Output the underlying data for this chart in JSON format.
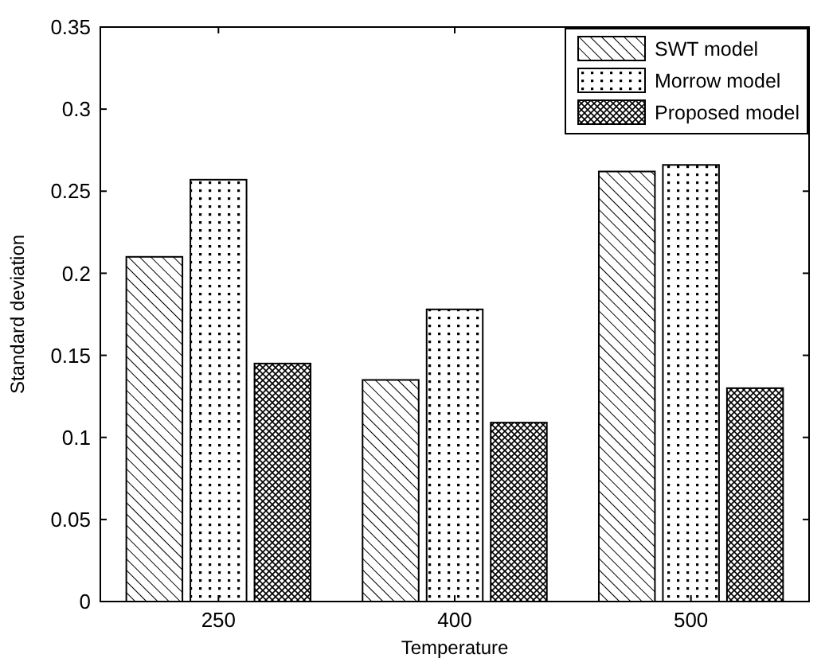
{
  "chart_data": {
    "type": "bar",
    "xlabel": "Temperature",
    "ylabel": "Standard deviation",
    "categories": [
      "250",
      "400",
      "500"
    ],
    "series": [
      {
        "name": "SWT model",
        "color": "#000000",
        "values": [
          0.21,
          0.135,
          0.262
        ]
      },
      {
        "name": "Morrow model",
        "color": "#000000",
        "values": [
          0.257,
          0.178,
          0.266
        ]
      },
      {
        "name": "Proposed model",
        "color": "#000000",
        "values": [
          0.145,
          0.109,
          0.13
        ]
      }
    ],
    "ylim": [
      0,
      0.35
    ],
    "yticks": [
      0,
      0.05,
      0.1,
      0.15,
      0.2,
      0.25,
      0.3,
      0.35
    ],
    "grid": false,
    "legend": "top right"
  }
}
